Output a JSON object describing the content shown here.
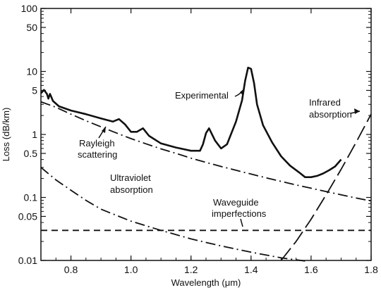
{
  "chart_data": {
    "type": "line",
    "title": "",
    "xlabel": "Wavelength (μm)",
    "ylabel": "Loss (dB/km)",
    "xlim": [
      0.7,
      1.8
    ],
    "ylim": [
      0.01,
      100
    ],
    "yscale": "log",
    "grid": false,
    "x_ticks": [
      0.8,
      1.0,
      1.2,
      1.4,
      1.6,
      1.8
    ],
    "x_tick_labels": [
      "0.8",
      "1.0",
      "1.2",
      "1.4",
      "1.6",
      "1.8"
    ],
    "y_ticks": [
      0.01,
      0.05,
      0.1,
      0.5,
      1,
      5,
      10,
      50,
      100
    ],
    "y_tick_labels": [
      "0.01",
      "0.05",
      "0.1",
      "0.5",
      "1",
      "5",
      "10",
      "50",
      "100"
    ],
    "annotations": {
      "experimental": "Experimental",
      "rayleigh_1": "Rayleigh",
      "rayleigh_2": "scattering",
      "ultraviolet_1": "Ultraviolet",
      "ultraviolet_2": "absorption",
      "waveguide_1": "Waveguide",
      "waveguide_2": "imperfections",
      "infrared_1": "Infrared",
      "infrared_2": "absorption"
    },
    "series": [
      {
        "key": "experimental",
        "style": "solid-thick",
        "x": [
          0.7,
          0.71,
          0.72,
          0.725,
          0.73,
          0.735,
          0.74,
          0.76,
          0.8,
          0.85,
          0.9,
          0.94,
          0.96,
          0.98,
          1.0,
          1.02,
          1.04,
          1.06,
          1.1,
          1.15,
          1.2,
          1.23,
          1.24,
          1.25,
          1.26,
          1.28,
          1.3,
          1.32,
          1.35,
          1.37,
          1.38,
          1.39,
          1.4,
          1.41,
          1.42,
          1.44,
          1.47,
          1.5,
          1.53,
          1.56,
          1.58,
          1.6,
          1.62,
          1.64,
          1.66,
          1.68,
          1.7
        ],
        "y": [
          4.5,
          5.1,
          4.4,
          3.7,
          4.4,
          3.9,
          3.4,
          2.8,
          2.4,
          2.1,
          1.8,
          1.6,
          1.75,
          1.45,
          1.1,
          1.1,
          1.25,
          0.95,
          0.72,
          0.62,
          0.55,
          0.55,
          0.7,
          1.05,
          1.25,
          0.8,
          0.6,
          0.7,
          1.6,
          3.5,
          7.0,
          11.5,
          11.0,
          6.5,
          3.0,
          1.4,
          0.75,
          0.45,
          0.32,
          0.25,
          0.21,
          0.21,
          0.22,
          0.24,
          0.27,
          0.31,
          0.4
        ]
      },
      {
        "key": "rayleigh",
        "style": "dash-dot",
        "x": [
          0.7,
          0.75,
          0.8,
          0.85,
          0.9,
          0.95,
          1.0,
          1.05,
          1.1,
          1.15,
          1.2,
          1.25,
          1.3,
          1.35,
          1.4,
          1.45,
          1.5,
          1.55,
          1.6,
          1.65,
          1.7,
          1.75,
          1.8
        ],
        "y": [
          3.3,
          2.7,
          2.1,
          1.65,
          1.32,
          1.06,
          0.86,
          0.71,
          0.59,
          0.5,
          0.42,
          0.36,
          0.31,
          0.27,
          0.235,
          0.205,
          0.18,
          0.158,
          0.14,
          0.124,
          0.11,
          0.098,
          0.088
        ]
      },
      {
        "key": "ultraviolet",
        "style": "dash-dot",
        "x": [
          0.7,
          0.75,
          0.8,
          0.85,
          0.9,
          1.0,
          1.1,
          1.2,
          1.3,
          1.4,
          1.5,
          1.58
        ],
        "y": [
          0.3,
          0.19,
          0.13,
          0.09,
          0.065,
          0.042,
          0.03,
          0.022,
          0.017,
          0.0135,
          0.011,
          0.0098
        ]
      },
      {
        "key": "waveguide",
        "style": "dashed",
        "x": [
          0.7,
          1.8
        ],
        "y": [
          0.03,
          0.03
        ]
      },
      {
        "key": "infrared",
        "style": "long-dash",
        "x": [
          1.5,
          1.55,
          1.6,
          1.65,
          1.7,
          1.75,
          1.8
        ],
        "y": [
          0.01,
          0.02,
          0.045,
          0.11,
          0.28,
          0.75,
          2.1
        ]
      }
    ]
  }
}
